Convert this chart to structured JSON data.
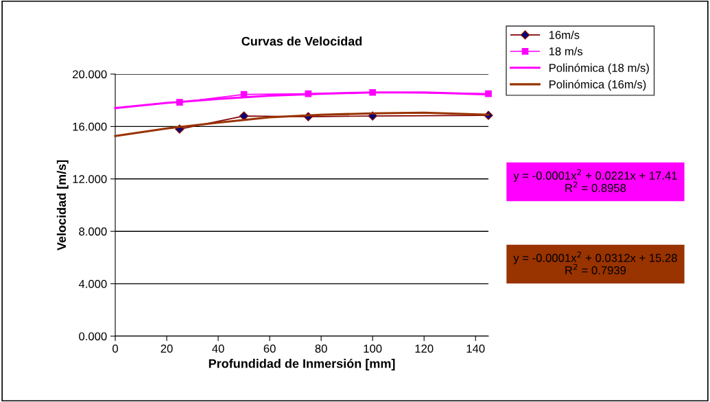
{
  "chart_data": {
    "type": "line",
    "title": "Curvas de Velocidad",
    "xlabel": "Profundidad de Inmersión [mm]",
    "ylabel": "Velocidad [m/s]",
    "xlim": [
      0,
      145
    ],
    "xticks": [
      0,
      20,
      40,
      60,
      80,
      100,
      120,
      140
    ],
    "ylim": [
      0,
      20
    ],
    "yticks": [
      {
        "value": 0,
        "label": "0.000"
      },
      {
        "value": 4,
        "label": "4.000"
      },
      {
        "value": 8,
        "label": "8.000"
      },
      {
        "value": 12,
        "label": "12.000"
      },
      {
        "value": 16,
        "label": "16.000"
      },
      {
        "value": 20,
        "label": "20.000"
      }
    ],
    "grid": "y",
    "legend": "top right",
    "series": [
      {
        "name": "16m/s",
        "color": "#800000",
        "marker": "diamond",
        "x": [
          25,
          50,
          75,
          100,
          145
        ],
        "values": [
          15.8,
          16.8,
          16.75,
          16.8,
          16.85
        ]
      },
      {
        "name": "18 m/s",
        "color": "#ff00ff",
        "marker": "square",
        "x": [
          25,
          50,
          75,
          100,
          145
        ],
        "values": [
          17.85,
          18.45,
          18.5,
          18.6,
          18.5
        ]
      },
      {
        "name": "Polinómica (18 m/s)",
        "color": "#ff00ff",
        "marker": "none",
        "x": [
          0,
          20,
          40,
          60,
          80,
          100,
          120,
          145
        ],
        "values": [
          17.41,
          17.8,
          18.1,
          18.35,
          18.5,
          18.6,
          18.6,
          18.45
        ]
      },
      {
        "name": "Polinómica (16m/s)",
        "color": "#993300",
        "marker": "none",
        "x": [
          0,
          20,
          40,
          60,
          80,
          100,
          120,
          145
        ],
        "values": [
          15.28,
          15.85,
          16.3,
          16.7,
          16.9,
          17.0,
          17.05,
          16.9
        ]
      }
    ],
    "annotations": [
      "y = -0.0001x$^{2}$ + 0.0221x + 17.41\nR$^{2}$ = 0.8958",
      "y = -0.0001x$^{2}$ + 0.0312x + 15.28\nR$^{2}$ = 0.7939"
    ]
  }
}
